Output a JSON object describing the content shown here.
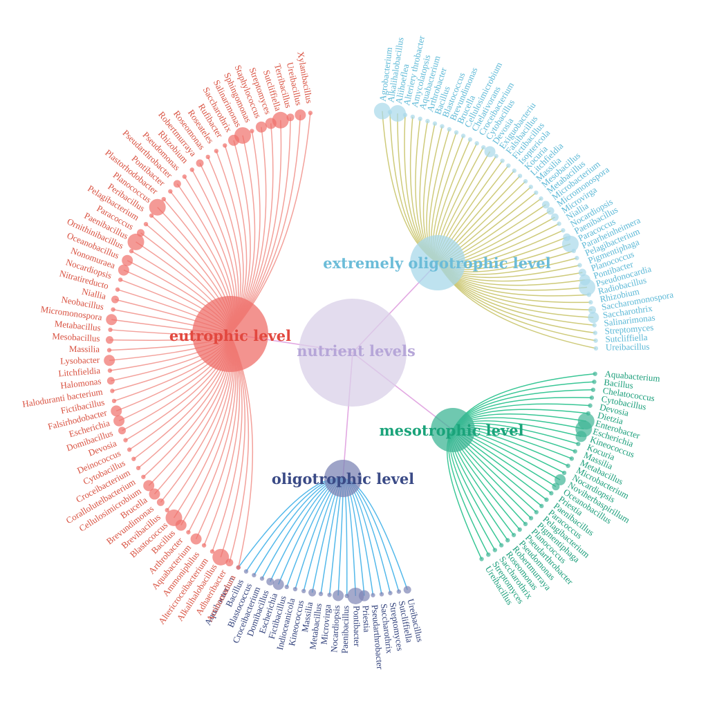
{
  "root": {
    "label": "nutrient levels",
    "color": "#d9d0e8",
    "text_color": "#b6a6d8"
  },
  "edge_color": "#e2a8e2",
  "groups": [
    {
      "key": "extremely",
      "label": "extremely oligotrophic level",
      "node_color": "#a8d8ea",
      "edge_color": "#c9c46a",
      "text_color": "#6bbcd8",
      "leaf_color": "#5bb8d6",
      "leaves": [
        "Agrobacterium",
        "Alkalihalobacillus",
        "Aliihoeflea",
        "Alteriery throbacter",
        "Amycolatopsis",
        "Aquabacterium",
        "Arthrobacter",
        "Bacillus",
        "Blastococcus",
        "Brevundimonas",
        "Brucella",
        "Cellulosimicrobium",
        "Chelativorans",
        "Croceibacterium",
        "Cytobacillus",
        "Devosia",
        "Exiguobacteriu",
        "Falsibacillus",
        "Fictibacillus",
        "Isoptericola",
        "Kocuria",
        "Litchfieldia",
        "Massilia",
        "Mesobacillus",
        "Metabacillus",
        "Microbacterium",
        "Micromonospora",
        "Microvirga",
        "Niallia",
        "Nocardiopsis",
        "Paenibacillus",
        "Paracoccus",
        "Pararheinheimera",
        "Pelagibacterium",
        "Pigmentiphaga",
        "Planococcus",
        "Pontibacter",
        "Pseudonocardia",
        "Radiobacillus",
        "Rhizobium",
        "Saccharomonospora",
        "Saccharothrix",
        "Salinarimonas",
        "Streptomyces",
        "Sutcliffiella",
        "Ureibacillus"
      ]
    },
    {
      "key": "mesotrophic",
      "label": "mesotrophic level",
      "node_color": "#3fb596",
      "edge_color": "#22c08a",
      "text_color": "#1aa37a",
      "leaf_color": "#1a9e7a",
      "leaves": [
        "Aquabacterium",
        "Bacillus",
        "Chelatococcus",
        "Cytobacillus",
        "Devosia",
        "Dietzia",
        "Enterobacter",
        "Escherichia",
        "Kineococcus",
        "Kocuria",
        "Massilia",
        "Metabacillus",
        "Microbacterium",
        "Nocardiopsis",
        "Noviherbaspirillum",
        "Oceanobacillus",
        "Priestia",
        "Paenibacillus",
        "Paracoccus",
        "Pelagibacterium",
        "Pigmentiphaga",
        "Planococcus",
        "Pseudarthrobacter",
        "Pseudomonas",
        "Robertmurraya",
        "Roseomonas",
        "Saccharothrix",
        "Streptomyces",
        "Ureibacillus"
      ]
    },
    {
      "key": "oligotrophic",
      "label": "oligotrophic level",
      "node_color": "#7e85b5",
      "edge_color": "#3fb0e8",
      "text_color": "#3a4a86",
      "leaf_color": "#2f3f7a",
      "leaves": [
        "Ureibacillus",
        "Sutcliffiella",
        "Streptomyces",
        "Saccharothrix",
        "Pseudarthrobacter",
        "Priestia",
        "Pontibacter",
        "Paenibacillus",
        "Nocardiopsis",
        "Microvirga",
        "Metabacillus",
        "Massilia",
        "Kineococcus",
        "Indioceanicola",
        "Fictibacillus",
        "Escherichia",
        "Domibacillus",
        "Croceibacterium",
        "Blastococcus",
        "Bacillus",
        "Aquabacterium"
      ]
    },
    {
      "key": "eutrophic",
      "label": "eutrophic level",
      "node_color": "#ef6f6a",
      "edge_color": "#f2968f",
      "text_color": "#e2483f",
      "leaf_color": "#d8503f",
      "leaves": [
        "Actinomadura",
        "Adhaeribacter",
        "Alkalihalobacillus",
        "Altericroceibacterium",
        "Ammoniphilus",
        "Aquabacterium",
        "Arthrobacter",
        "Bacillus",
        "Blastococcus",
        "Brevibacillus",
        "Brevundimonas",
        "Brucella",
        "Cellulosimicrobium",
        "Corallolutelbacterium",
        "Croceibacterium",
        "Cytobacillus",
        "Deinococcus",
        "Devosia",
        "Domibacillus",
        "Escherichia",
        "Falsirhodobacter",
        "Fictibacillus",
        "Haloduranti bacterium",
        "Halomonas",
        "Litchfieldia",
        "Lysobacter",
        "Massilia",
        "Mesobacillus",
        "Metabacillus",
        "Micromonospora",
        "Neobacillus",
        "Niallia",
        "Nitratireducto",
        "Nocardiopsis",
        "Nonomuraea",
        "Oceanobacillus",
        "Ornithinibacillus",
        "Paenibacillus",
        "Paracoccus",
        "Pelagibacterium",
        "Peribacillus",
        "Planococcus",
        "Plastorhodobacter",
        "Pontibacter",
        "Pseudarthrobacter",
        "Pseudomonas",
        "Rhizobium",
        "Robertmurraya",
        "Roseomonas",
        "Roseateles",
        "Rufibacter",
        "Saccharothrix",
        "Salinarimonas",
        "Sphingomonas",
        "Staphylococcus",
        "Streptomyces",
        "Sutcliffiella",
        "Terribacillus",
        "Ureibacillus",
        "Xylanibacillus"
      ]
    }
  ]
}
